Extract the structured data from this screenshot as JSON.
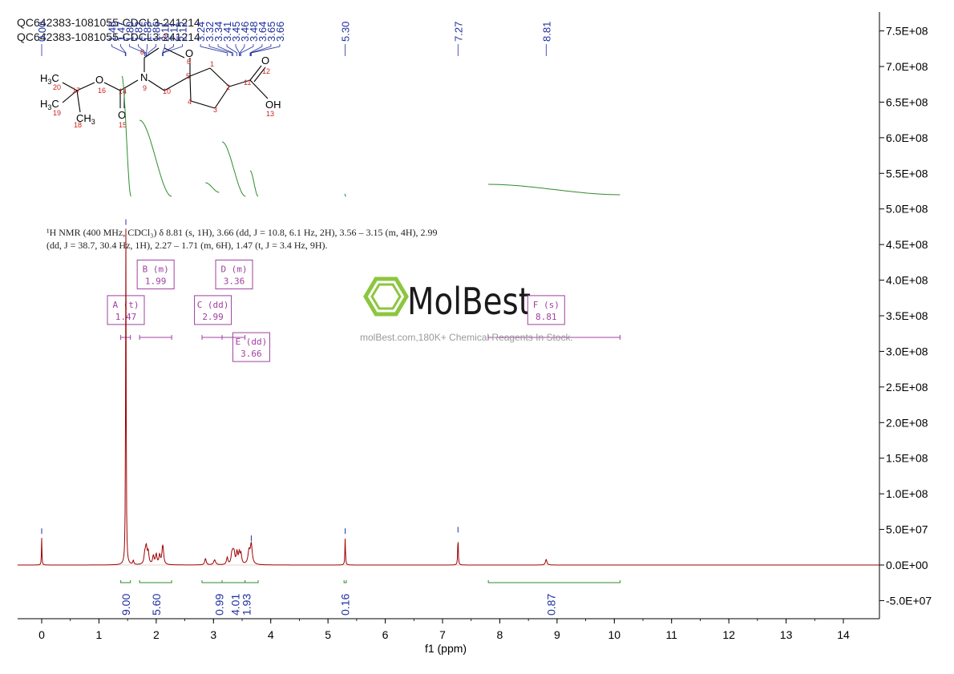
{
  "header": {
    "title_line_1": "QC642383-1081055-CDCL3-241214",
    "title_line_2": "QC642383-1081055-CDCL3-241214"
  },
  "nmr_description": {
    "line_1": "¹H NMR (400 MHz, CDCl₃) δ 8.81 (s, 1H), 3.66 (dd, J = 10.8, 6.1 Hz, 2H), 3.56 – 3.15 (m, 4H), 2.99",
    "line_2": "(dd, J = 38.7, 30.4 Hz, 1H), 2.27 – 1.71 (m, 6H), 1.47 (t, J = 3.4 Hz, 9H)."
  },
  "watermark": {
    "brand": "MolBest",
    "tagline": "molBest.com,180K+ Chemical Reagents In Stock."
  },
  "structure": {
    "groups": [
      "H3C",
      "H3C",
      "CH3",
      "O",
      "N",
      "O",
      "O",
      "O",
      "OH"
    ],
    "atom_numbers": [
      "1",
      "2",
      "3",
      "4",
      "5",
      "6",
      "7",
      "8",
      "9",
      "10",
      "11",
      "12",
      "13",
      "14",
      "15",
      "16",
      "17",
      "18",
      "19",
      "20"
    ]
  },
  "colors": {
    "spectrum": "#a00000",
    "peak_labels": "#1f2f9f",
    "integrals": "#2e8b2e",
    "multiplets": "#a040a0",
    "axis": "#000000"
  },
  "chart_data": {
    "type": "line",
    "xlabel": "f1 (ppm)",
    "ylabel": "",
    "xlim": [
      14.3,
      -0.6
    ],
    "ylim": [
      -70000000,
      780000000
    ],
    "x_ticks": [
      "14",
      "13",
      "12",
      "11",
      "10",
      "9",
      "8",
      "7",
      "6",
      "5",
      "4",
      "3",
      "2",
      "1",
      "0"
    ],
    "x_tick_values": [
      14,
      13,
      12,
      11,
      10,
      9,
      8,
      7,
      6,
      5,
      4,
      3,
      2,
      1,
      0
    ],
    "y_ticks": [
      "7.5E+08",
      "7.0E+08",
      "6.5E+08",
      "6.0E+08",
      "5.5E+08",
      "5.0E+08",
      "4.5E+08",
      "4.0E+08",
      "3.5E+08",
      "3.0E+08",
      "2.5E+08",
      "2.0E+08",
      "1.5E+08",
      "1.0E+08",
      "5.0E+07",
      "0.0E+00",
      "-5.0E+07"
    ],
    "y_tick_values": [
      750000000,
      700000000,
      650000000,
      600000000,
      550000000,
      500000000,
      450000000,
      400000000,
      350000000,
      300000000,
      250000000,
      200000000,
      150000000,
      100000000,
      50000000,
      0,
      -50000000
    ],
    "peaks": [
      {
        "ppm": 8.81,
        "height": 8000000,
        "width": 0.015
      },
      {
        "ppm": 7.27,
        "height": 40000000,
        "width": 0.006
      },
      {
        "ppm": 5.3,
        "height": 38000000,
        "width": 0.006
      },
      {
        "ppm": 3.66,
        "height": 28000000,
        "width": 0.02
      },
      {
        "ppm": 3.62,
        "height": 18000000,
        "width": 0.02
      },
      {
        "ppm": 3.48,
        "height": 14000000,
        "width": 0.015
      },
      {
        "ppm": 3.45,
        "height": 15000000,
        "width": 0.015
      },
      {
        "ppm": 3.41,
        "height": 17000000,
        "width": 0.015
      },
      {
        "ppm": 3.36,
        "height": 14000000,
        "width": 0.015
      },
      {
        "ppm": 3.34,
        "height": 12000000,
        "width": 0.015
      },
      {
        "ppm": 3.32,
        "height": 13000000,
        "width": 0.015
      },
      {
        "ppm": 3.24,
        "height": 10000000,
        "width": 0.015
      },
      {
        "ppm": 3.02,
        "height": 7000000,
        "width": 0.02
      },
      {
        "ppm": 2.86,
        "height": 9000000,
        "width": 0.015
      },
      {
        "ppm": 2.12,
        "height": 14000000,
        "width": 0.015
      },
      {
        "ppm": 2.11,
        "height": 16000000,
        "width": 0.015
      },
      {
        "ppm": 2.06,
        "height": 13000000,
        "width": 0.015
      },
      {
        "ppm": 2.0,
        "height": 14000000,
        "width": 0.015
      },
      {
        "ppm": 1.95,
        "height": 12000000,
        "width": 0.015
      },
      {
        "ppm": 1.86,
        "height": 17000000,
        "width": 0.015
      },
      {
        "ppm": 1.83,
        "height": 14000000,
        "width": 0.015
      },
      {
        "ppm": 1.82,
        "height": 12000000,
        "width": 0.015
      },
      {
        "ppm": 1.8,
        "height": 13000000,
        "width": 0.015
      },
      {
        "ppm": 1.6,
        "height": 6000000,
        "width": 0.01
      },
      {
        "ppm": 1.47,
        "height": 472000000,
        "width": 0.006
      },
      {
        "ppm": 0.0,
        "height": 38000000,
        "width": 0.005
      }
    ],
    "peak_labels": [
      "8.81",
      "7.27",
      "5.30",
      "3.66",
      "3.65",
      "3.64",
      "3.48",
      "3.46",
      "3.45",
      "3.41",
      "3.34",
      "3.32",
      "3.24",
      "2.12",
      "2.11",
      "2.11",
      "1.86",
      "1.83",
      "1.82",
      "1.80",
      "1.47",
      "1.46",
      "0.00"
    ],
    "peak_label_ppm": [
      8.81,
      7.27,
      5.3,
      3.66,
      3.65,
      3.64,
      3.48,
      3.46,
      3.45,
      3.41,
      3.34,
      3.32,
      3.24,
      2.12,
      2.11,
      2.11,
      1.86,
      1.83,
      1.82,
      1.8,
      1.47,
      1.46,
      0.0
    ],
    "integrals": [
      {
        "from": 10.1,
        "to": 7.8,
        "value": "0.87",
        "label_ppm": 8.9
      },
      {
        "from": 5.32,
        "to": 5.28,
        "value": "0.16",
        "label_ppm": 5.3
      },
      {
        "from": 3.78,
        "to": 3.55,
        "value": "1.93",
        "label_ppm": 3.58
      },
      {
        "from": 3.55,
        "to": 3.15,
        "value": "4.01",
        "label_ppm": 3.38
      },
      {
        "from": 3.15,
        "to": 2.8,
        "value": "0.99",
        "label_ppm": 3.1
      },
      {
        "from": 2.27,
        "to": 1.71,
        "value": "5.60",
        "label_ppm": 2.0
      },
      {
        "from": 1.55,
        "to": 1.38,
        "value": "9.00",
        "label_ppm": 1.47
      }
    ],
    "multiplets": [
      {
        "letter": "F",
        "type": "(s)",
        "shift": "8.81",
        "from": 10.1,
        "to": 7.8,
        "box_ppm": 8.81,
        "box_y": 358000000
      },
      {
        "letter": "E",
        "type": "(dd)",
        "shift": "3.66",
        "from": 3.78,
        "to": 3.55,
        "box_ppm": 3.66,
        "box_y": 306000000
      },
      {
        "letter": "D",
        "type": "(m)",
        "shift": "3.36",
        "from": 3.55,
        "to": 3.15,
        "box_ppm": 3.36,
        "box_y": 408000000
      },
      {
        "letter": "C",
        "type": "(dd)",
        "shift": "2.99",
        "from": 3.15,
        "to": 2.8,
        "box_ppm": 2.99,
        "box_y": 358000000
      },
      {
        "letter": "B",
        "type": "(m)",
        "shift": "1.99",
        "from": 2.27,
        "to": 1.71,
        "box_ppm": 1.99,
        "box_y": 408000000
      },
      {
        "letter": "A",
        "type": "(t)",
        "shift": "1.47",
        "from": 1.55,
        "to": 1.38,
        "box_ppm": 1.47,
        "box_y": 358000000
      }
    ]
  }
}
